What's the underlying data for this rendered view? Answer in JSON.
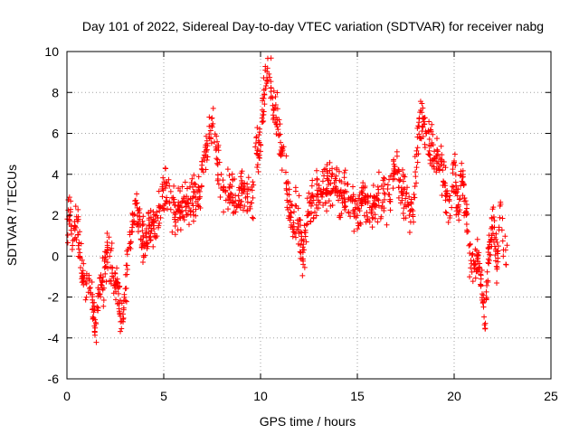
{
  "chart_data": {
    "type": "scatter",
    "title": "Day 101 of 2022, Sidereal Day-to-day VTEC variation (SDTVAR) for receiver nabg",
    "xlabel": "GPS time / hours",
    "ylabel": "SDTVAR / TECUs",
    "xlim": [
      0,
      25
    ],
    "ylim": [
      -6,
      10
    ],
    "x_ticks": [
      0,
      5,
      10,
      15,
      20,
      25
    ],
    "x_tick_labels": [
      "0",
      "5",
      "10",
      "15",
      "20",
      "25"
    ],
    "y_ticks": [
      -6,
      -4,
      -2,
      0,
      2,
      4,
      6,
      8,
      10
    ],
    "y_tick_labels": [
      "-6",
      "-4",
      "-2",
      "0",
      "2",
      "4",
      "6",
      "8",
      "10"
    ],
    "grid": true,
    "marker": "plus",
    "color": "#ff0000",
    "series": [
      {
        "name": "SDTVAR",
        "x_start": 0.0,
        "x_end": 22.75,
        "trend": [
          [
            0.0,
            0.8
          ],
          [
            0.1,
            2.5
          ],
          [
            0.3,
            1.0
          ],
          [
            0.5,
            2.0
          ],
          [
            0.7,
            0.0
          ],
          [
            0.9,
            -1.5
          ],
          [
            1.1,
            -1.6
          ],
          [
            1.3,
            -2.0
          ],
          [
            1.5,
            -3.6
          ],
          [
            1.7,
            -1.6
          ],
          [
            1.9,
            -1.2
          ],
          [
            2.1,
            0.3
          ],
          [
            2.3,
            -0.2
          ],
          [
            2.5,
            -1.3
          ],
          [
            2.7,
            -2.3
          ],
          [
            2.9,
            -3.0
          ],
          [
            3.1,
            -0.8
          ],
          [
            3.3,
            1.3
          ],
          [
            3.5,
            2.1
          ],
          [
            3.8,
            1.4
          ],
          [
            4.0,
            0.6
          ],
          [
            4.3,
            1.6
          ],
          [
            4.6,
            1.2
          ],
          [
            4.9,
            2.9
          ],
          [
            5.2,
            3.2
          ],
          [
            5.6,
            2.0
          ],
          [
            5.9,
            2.1
          ],
          [
            6.2,
            2.5
          ],
          [
            6.5,
            2.8
          ],
          [
            6.8,
            3.1
          ],
          [
            7.0,
            4.0
          ],
          [
            7.2,
            5.5
          ],
          [
            7.4,
            6.0
          ],
          [
            7.6,
            6.6
          ],
          [
            7.8,
            4.3
          ],
          [
            8.1,
            2.7
          ],
          [
            8.4,
            3.2
          ],
          [
            8.7,
            2.6
          ],
          [
            9.0,
            3.2
          ],
          [
            9.3,
            3.0
          ],
          [
            9.6,
            2.6
          ],
          [
            9.8,
            5.2
          ],
          [
            10.0,
            5.5
          ],
          [
            10.15,
            7.5
          ],
          [
            10.3,
            8.6
          ],
          [
            10.45,
            9.0
          ],
          [
            10.6,
            7.8
          ],
          [
            10.9,
            6.5
          ],
          [
            11.2,
            4.5
          ],
          [
            11.4,
            3.0
          ],
          [
            11.6,
            1.6
          ],
          [
            11.8,
            2.0
          ],
          [
            12.0,
            1.5
          ],
          [
            12.2,
            0.2
          ],
          [
            12.5,
            2.6
          ],
          [
            12.8,
            2.6
          ],
          [
            13.0,
            3.2
          ],
          [
            13.3,
            3.5
          ],
          [
            13.6,
            3.3
          ],
          [
            13.9,
            3.4
          ],
          [
            14.1,
            2.7
          ],
          [
            14.4,
            3.0
          ],
          [
            14.7,
            2.4
          ],
          [
            15.0,
            2.2
          ],
          [
            15.3,
            3.0
          ],
          [
            15.6,
            2.4
          ],
          [
            15.9,
            2.3
          ],
          [
            16.2,
            3.1
          ],
          [
            16.5,
            2.6
          ],
          [
            16.8,
            3.8
          ],
          [
            17.0,
            4.3
          ],
          [
            17.3,
            3.2
          ],
          [
            17.6,
            2.6
          ],
          [
            17.9,
            2.3
          ],
          [
            18.1,
            5.5
          ],
          [
            18.3,
            6.9
          ],
          [
            18.6,
            5.8
          ],
          [
            18.9,
            5.0
          ],
          [
            19.2,
            5.2
          ],
          [
            19.5,
            3.8
          ],
          [
            19.8,
            2.0
          ],
          [
            20.0,
            4.5
          ],
          [
            20.2,
            2.0
          ],
          [
            20.4,
            4.0
          ],
          [
            20.6,
            2.6
          ],
          [
            20.8,
            0.2
          ],
          [
            21.0,
            -0.8
          ],
          [
            21.2,
            0.2
          ],
          [
            21.4,
            -1.5
          ],
          [
            21.6,
            -3.0
          ],
          [
            21.8,
            0.3
          ],
          [
            22.0,
            1.6
          ],
          [
            22.2,
            -0.6
          ],
          [
            22.4,
            2.6
          ],
          [
            22.6,
            0.2
          ],
          [
            22.75,
            0.1
          ]
        ]
      }
    ]
  }
}
